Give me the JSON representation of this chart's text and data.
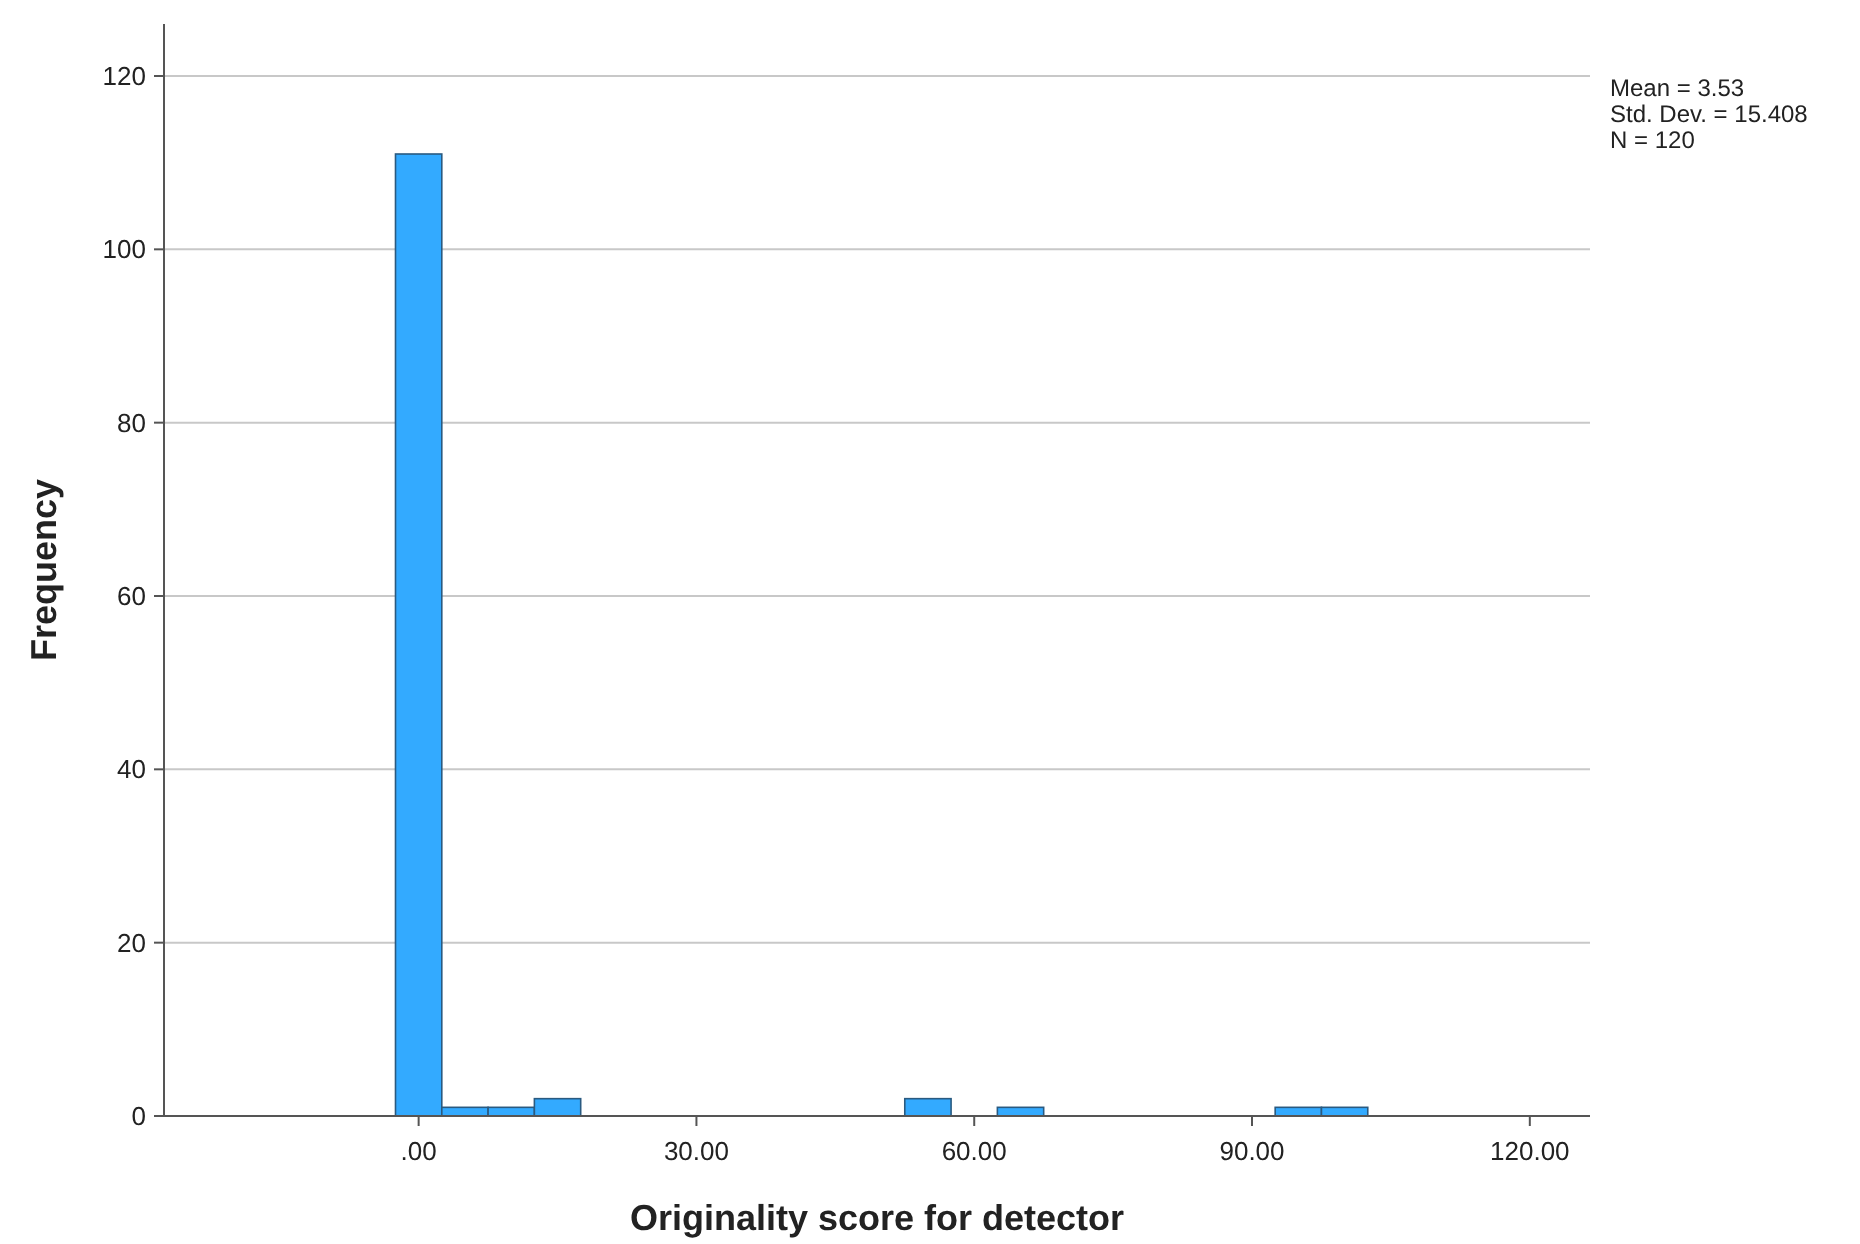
{
  "chart_data": {
    "type": "histogram",
    "xlabel": "Originality score for detector",
    "ylabel": "Frequency",
    "bins": [
      -2.5,
      2.5,
      7.5,
      12.5,
      17.5,
      22.5,
      27.5,
      32.5,
      37.5,
      42.5,
      47.5,
      52.5,
      57.5,
      62.5,
      67.5,
      72.5,
      77.5,
      82.5,
      87.5,
      92.5,
      97.5,
      102.5
    ],
    "values": [
      111,
      1,
      1,
      2,
      0,
      0,
      0,
      0,
      0,
      0,
      0,
      2,
      0,
      1,
      0,
      0,
      0,
      0,
      0,
      1,
      1
    ],
    "color": "#33aaff",
    "xlim": [
      -27.5,
      126.5
    ],
    "xticks": [
      {
        "value": 0,
        "label": ".00"
      },
      {
        "value": 30,
        "label": "30.00"
      },
      {
        "value": 60,
        "label": "60.00"
      },
      {
        "value": 90,
        "label": "90.00"
      },
      {
        "value": 120,
        "label": "120.00"
      }
    ],
    "ylim": [
      0,
      126
    ],
    "yticks": [
      0,
      20,
      40,
      60,
      80,
      100,
      120
    ],
    "grid": "y",
    "annotations": [
      "Mean = 3.53",
      "Std. Dev. = 15.408",
      "N = 120"
    ]
  }
}
